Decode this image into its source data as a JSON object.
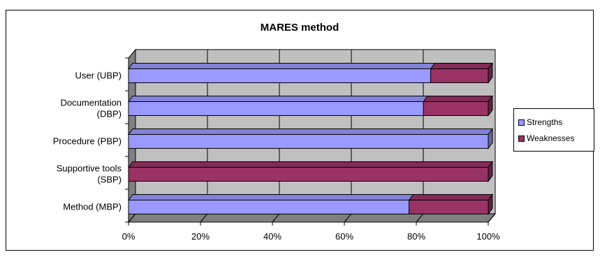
{
  "chart_data": {
    "type": "bar",
    "orientation": "horizontal",
    "stacked": "percent",
    "title": "MARES method",
    "categories": [
      "User (UBP)",
      "Documentation (DBP)",
      "Procedure (PBP)",
      "Supportive tools (SBP)",
      "Method (MBP)"
    ],
    "series": [
      {
        "name": "Strengths",
        "color": "#9999ff",
        "values": [
          84,
          82,
          100,
          0,
          78
        ]
      },
      {
        "name": "Weaknesses",
        "color": "#993366",
        "values": [
          16,
          18,
          0,
          100,
          22
        ]
      }
    ],
    "xlim": [
      0,
      100
    ],
    "xticks": [
      "0%",
      "20%",
      "40%",
      "60%",
      "80%",
      "100%"
    ],
    "grid": true,
    "legend_position": "right",
    "colors": {
      "plot_wall": "#c0c0c0",
      "floor": "#808080",
      "grid": "#000000"
    }
  }
}
